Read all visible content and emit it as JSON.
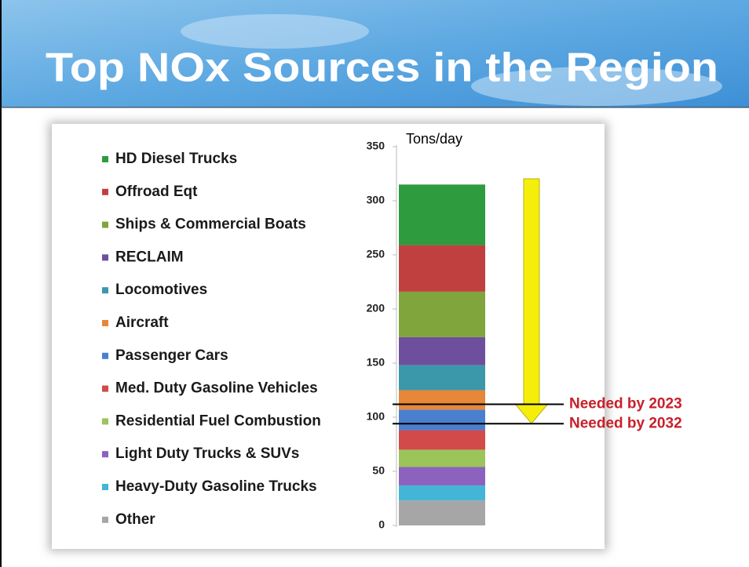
{
  "chart_data": {
    "type": "stacked_bar",
    "title": "Top NOx Sources in the Region",
    "y_label": "Tons/day",
    "ylim": [
      0,
      350
    ],
    "yticks": [
      0,
      50,
      100,
      150,
      200,
      250,
      300,
      350
    ],
    "series": [
      {
        "name": "HD Diesel Trucks",
        "color": "#2e9b3e",
        "values": [
          56
        ]
      },
      {
        "name": "Offroad Eqt",
        "color": "#c0403f",
        "values": [
          43
        ]
      },
      {
        "name": "Ships & Commercial Boats",
        "color": "#7fa53c",
        "values": [
          42
        ]
      },
      {
        "name": "RECLAIM",
        "color": "#6e4f9e",
        "values": [
          26
        ]
      },
      {
        "name": "Locomotives",
        "color": "#3a98aa",
        "values": [
          23
        ]
      },
      {
        "name": "Aircraft",
        "color": "#e6873a",
        "values": [
          18
        ]
      },
      {
        "name": "Passenger Cars",
        "color": "#4a7fcf",
        "values": [
          19
        ]
      },
      {
        "name": "Med. Duty Gasoline Vehicles",
        "color": "#d24a4a",
        "values": [
          18
        ]
      },
      {
        "name": "Residential Fuel Combustion",
        "color": "#9bc45a",
        "values": [
          16
        ]
      },
      {
        "name": "Light Duty Trucks & SUVs",
        "color": "#8c62be",
        "values": [
          17
        ]
      },
      {
        "name": "Heavy-Duty Gasoline Trucks",
        "color": "#44b5d6",
        "values": [
          14
        ]
      },
      {
        "name": "Other",
        "color": "#a6a6a6",
        "values": [
          23
        ]
      }
    ],
    "annotations": [
      {
        "label": "Needed by 2023",
        "value": 112
      },
      {
        "label": "Needed by 2032",
        "value": 94
      }
    ]
  }
}
